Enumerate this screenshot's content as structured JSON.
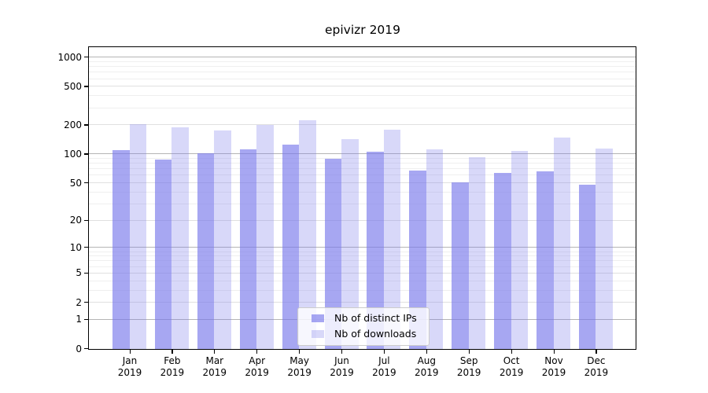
{
  "chart_data": {
    "type": "bar",
    "title": "epivizr 2019",
    "categories": [
      "Jan",
      "Feb",
      "Mar",
      "Apr",
      "May",
      "Jun",
      "Jul",
      "Aug",
      "Sep",
      "Oct",
      "Nov",
      "Dec"
    ],
    "x_tick_second_line": "2019",
    "series": [
      {
        "name": "Nb of distinct IPs",
        "color": "#7878eb",
        "alpha": 0.65,
        "values": [
          111,
          88,
          102,
          112,
          126,
          90,
          106,
          68,
          51,
          64,
          67,
          48
        ]
      },
      {
        "name": "Nb of downloads",
        "color": "#7878eb",
        "alpha": 0.29,
        "values": [
          206,
          190,
          177,
          200,
          225,
          145,
          181,
          113,
          94,
          108,
          150,
          115
        ]
      }
    ],
    "yscale": "log1p",
    "yticks": [
      0,
      1,
      2,
      5,
      10,
      20,
      50,
      100,
      200,
      500,
      1000
    ],
    "ylim": [
      0,
      1258
    ],
    "grid": true,
    "legend": {
      "location": "lower center",
      "entries": [
        "Nb of distinct IPs",
        "Nb of downloads"
      ]
    }
  }
}
